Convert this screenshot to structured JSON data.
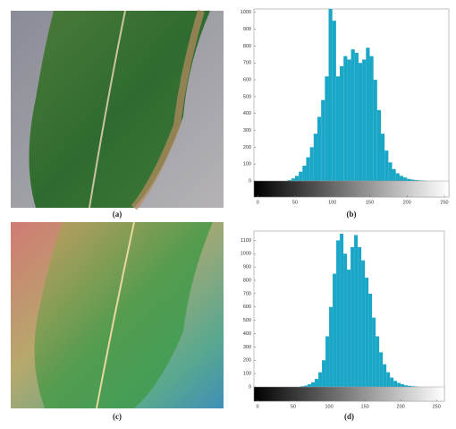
{
  "images": [
    {
      "caption": "(a)"
    },
    {
      "caption": "(c)"
    }
  ],
  "chart_data": [
    {
      "type": "histogram",
      "caption": "(b)",
      "color": "#1aa7c7",
      "bins": [
        0,
        5,
        10,
        15,
        20,
        25,
        30,
        35,
        40,
        45,
        50,
        55,
        60,
        65,
        70,
        75,
        80,
        85,
        90,
        95,
        100,
        105,
        110,
        115,
        120,
        125,
        130,
        135,
        140,
        145,
        150,
        155,
        160,
        165,
        170,
        175,
        180,
        185,
        190,
        195,
        200,
        205,
        210,
        215,
        220,
        225,
        230,
        235,
        240,
        245,
        250,
        255
      ],
      "counts": [
        0,
        0,
        0,
        0,
        0,
        0,
        0,
        0,
        5,
        15,
        30,
        55,
        90,
        140,
        200,
        280,
        380,
        480,
        620,
        1020,
        950,
        620,
        680,
        740,
        720,
        780,
        760,
        700,
        720,
        790,
        740,
        600,
        420,
        280,
        180,
        110,
        70,
        45,
        30,
        20,
        12,
        8,
        5,
        3,
        2,
        0,
        0,
        0,
        0,
        0,
        0
      ],
      "xlim": [
        -5,
        256
      ],
      "xticks": [
        0,
        50,
        100,
        150,
        200,
        250
      ],
      "ylim": [
        0,
        1020
      ],
      "yticks": [
        0,
        100,
        200,
        300,
        400,
        500,
        600,
        700,
        800,
        900,
        1000
      ]
    },
    {
      "type": "histogram",
      "caption": "(d)",
      "color": "#1aa7c7",
      "bins": [
        0,
        5,
        10,
        15,
        20,
        25,
        30,
        35,
        40,
        45,
        50,
        55,
        60,
        65,
        70,
        75,
        80,
        85,
        90,
        95,
        100,
        105,
        110,
        115,
        120,
        125,
        130,
        135,
        140,
        145,
        150,
        155,
        160,
        165,
        170,
        175,
        180,
        185,
        190,
        195,
        200,
        205,
        210,
        215,
        220,
        225,
        230,
        235,
        240,
        245,
        250,
        255
      ],
      "counts": [
        0,
        0,
        0,
        0,
        0,
        0,
        0,
        0,
        0,
        0,
        0,
        0,
        5,
        10,
        20,
        35,
        60,
        110,
        200,
        380,
        600,
        850,
        1100,
        1150,
        1000,
        880,
        1050,
        1140,
        1050,
        950,
        820,
        700,
        520,
        380,
        260,
        170,
        110,
        70,
        45,
        30,
        20,
        12,
        8,
        5,
        3,
        0,
        0,
        0,
        0,
        0,
        0
      ],
      "xlim": [
        -5,
        261
      ],
      "xticks": [
        0,
        50,
        100,
        150,
        200,
        250
      ],
      "ylim": [
        0,
        1170
      ],
      "yticks": [
        0,
        100,
        200,
        300,
        400,
        500,
        600,
        700,
        800,
        900,
        1000,
        1100
      ]
    }
  ]
}
